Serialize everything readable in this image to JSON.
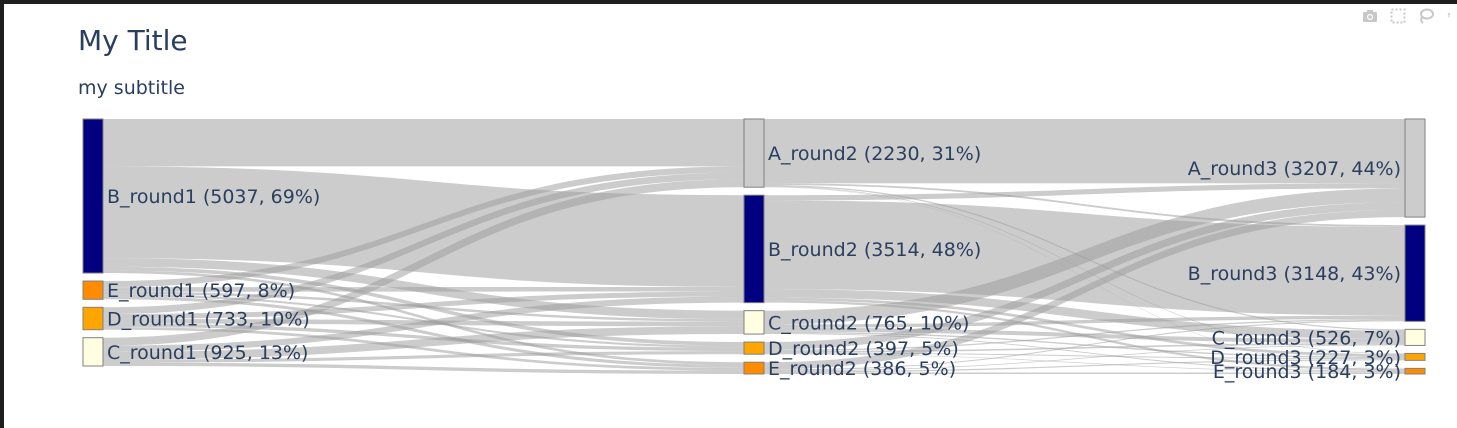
{
  "title": "My Title",
  "subtitle": "my subtitle",
  "modebar": [
    "camera-icon",
    "box-select-icon",
    "lasso-icon",
    "pan-icon"
  ],
  "colors": {
    "link": "#999999",
    "node_border": "#808080",
    "A": "#cccccc",
    "B": "#000080",
    "C": "#fffee0",
    "D": "#ffa500",
    "E": "#ff8c00",
    "text": "#2a3f5f"
  },
  "chart_data": {
    "type": "sankey",
    "title": "My Title",
    "subtitle": "my subtitle",
    "columns": [
      "round1",
      "round2",
      "round3"
    ],
    "nodes": [
      {
        "id": "B_round1",
        "col": 0,
        "value": 5037,
        "label": "B_round1 (5037, 69%)",
        "color": "#000080"
      },
      {
        "id": "E_round1",
        "col": 0,
        "value": 597,
        "label": "E_round1 (597, 8%)",
        "color": "#ff8c00"
      },
      {
        "id": "D_round1",
        "col": 0,
        "value": 733,
        "label": "D_round1 (733, 10%)",
        "color": "#ffa500"
      },
      {
        "id": "C_round1",
        "col": 0,
        "value": 925,
        "label": "C_round1 (925, 13%)",
        "color": "#fffee0"
      },
      {
        "id": "A_round2",
        "col": 1,
        "value": 2230,
        "label": "A_round2 (2230, 31%)",
        "color": "#cccccc"
      },
      {
        "id": "B_round2",
        "col": 1,
        "value": 3514,
        "label": "B_round2 (3514, 48%)",
        "color": "#000080"
      },
      {
        "id": "C_round2",
        "col": 1,
        "value": 765,
        "label": "C_round2 (765, 10%)",
        "color": "#fffee0"
      },
      {
        "id": "D_round2",
        "col": 1,
        "value": 397,
        "label": "D_round2 (397, 5%)",
        "color": "#ffa500"
      },
      {
        "id": "E_round2",
        "col": 1,
        "value": 386,
        "label": "E_round2 (386, 5%)",
        "color": "#ff8c00"
      },
      {
        "id": "A_round3",
        "col": 2,
        "value": 3207,
        "label": "A_round3 (3207, 44%)",
        "color": "#cccccc"
      },
      {
        "id": "B_round3",
        "col": 2,
        "value": 3148,
        "label": "B_round3 (3148, 43%)",
        "color": "#000080"
      },
      {
        "id": "C_round3",
        "col": 2,
        "value": 526,
        "label": "C_round3 (526, 7%)",
        "color": "#fffee0"
      },
      {
        "id": "D_round3",
        "col": 2,
        "value": 227,
        "label": "D_round3 (227, 3%)",
        "color": "#ffa500"
      },
      {
        "id": "E_round3",
        "col": 2,
        "value": 184,
        "label": "E_round3 (184, 3%)",
        "color": "#ff8c00"
      }
    ],
    "links": [
      {
        "source": "B_round1",
        "target": "A_round2",
        "value": 1550
      },
      {
        "source": "B_round1",
        "target": "B_round2",
        "value": 3000
      },
      {
        "source": "B_round1",
        "target": "C_round2",
        "value": 280
      },
      {
        "source": "B_round1",
        "target": "D_round2",
        "value": 120
      },
      {
        "source": "B_round1",
        "target": "E_round2",
        "value": 87
      },
      {
        "source": "E_round1",
        "target": "A_round2",
        "value": 200
      },
      {
        "source": "E_round1",
        "target": "B_round2",
        "value": 150
      },
      {
        "source": "E_round1",
        "target": "C_round2",
        "value": 80
      },
      {
        "source": "E_round1",
        "target": "D_round2",
        "value": 67
      },
      {
        "source": "E_round1",
        "target": "E_round2",
        "value": 100
      },
      {
        "source": "D_round1",
        "target": "A_round2",
        "value": 220
      },
      {
        "source": "D_round1",
        "target": "B_round2",
        "value": 164
      },
      {
        "source": "D_round1",
        "target": "C_round2",
        "value": 150
      },
      {
        "source": "D_round1",
        "target": "D_round2",
        "value": 110
      },
      {
        "source": "D_round1",
        "target": "E_round2",
        "value": 89
      },
      {
        "source": "C_round1",
        "target": "A_round2",
        "value": 260
      },
      {
        "source": "C_round1",
        "target": "B_round2",
        "value": 200
      },
      {
        "source": "C_round1",
        "target": "C_round2",
        "value": 255
      },
      {
        "source": "C_round1",
        "target": "D_round2",
        "value": 100
      },
      {
        "source": "C_round1",
        "target": "E_round2",
        "value": 110
      },
      {
        "source": "A_round2",
        "target": "A_round3",
        "value": 2100
      },
      {
        "source": "A_round2",
        "target": "B_round3",
        "value": 60
      },
      {
        "source": "A_round2",
        "target": "C_round3",
        "value": 40
      },
      {
        "source": "A_round2",
        "target": "D_round3",
        "value": 20
      },
      {
        "source": "A_round2",
        "target": "E_round3",
        "value": 10
      },
      {
        "source": "B_round2",
        "target": "A_round3",
        "value": 170
      },
      {
        "source": "B_round2",
        "target": "B_round3",
        "value": 2900
      },
      {
        "source": "B_round2",
        "target": "C_round3",
        "value": 280
      },
      {
        "source": "B_round2",
        "target": "D_round3",
        "value": 90
      },
      {
        "source": "B_round2",
        "target": "E_round3",
        "value": 74
      },
      {
        "source": "C_round2",
        "target": "A_round3",
        "value": 450
      },
      {
        "source": "C_round2",
        "target": "B_round3",
        "value": 110
      },
      {
        "source": "C_round2",
        "target": "C_round3",
        "value": 130
      },
      {
        "source": "C_round2",
        "target": "D_round3",
        "value": 45
      },
      {
        "source": "C_round2",
        "target": "E_round3",
        "value": 30
      },
      {
        "source": "D_round2",
        "target": "A_round3",
        "value": 250
      },
      {
        "source": "D_round2",
        "target": "B_round3",
        "value": 43
      },
      {
        "source": "D_round2",
        "target": "C_round3",
        "value": 50
      },
      {
        "source": "D_round2",
        "target": "D_round3",
        "value": 34
      },
      {
        "source": "D_round2",
        "target": "E_round3",
        "value": 20
      },
      {
        "source": "E_round2",
        "target": "A_round3",
        "value": 237
      },
      {
        "source": "E_round2",
        "target": "B_round3",
        "value": 35
      },
      {
        "source": "E_round2",
        "target": "C_round3",
        "value": 26
      },
      {
        "source": "E_round2",
        "target": "D_round3",
        "value": 38
      },
      {
        "source": "E_round2",
        "target": "E_round3",
        "value": 50
      }
    ]
  }
}
